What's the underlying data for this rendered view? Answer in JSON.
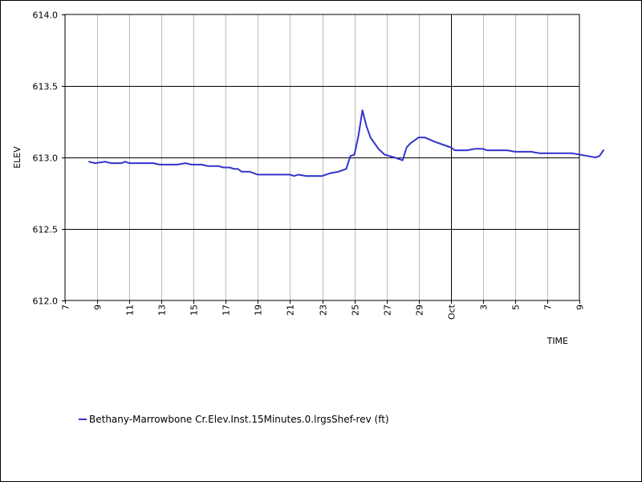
{
  "chart_data": {
    "type": "line",
    "xlabel": "TIME",
    "ylabel": "ELEV",
    "ylim": [
      612.0,
      614.0
    ],
    "yticks": [
      "612.0",
      "612.5",
      "613.0",
      "613.5",
      "614.0"
    ],
    "xlim": [
      "2023-09-07",
      "2023-10-09"
    ],
    "xticks": [
      {
        "date": "2023-09-07",
        "label": "7"
      },
      {
        "date": "2023-09-09",
        "label": "9"
      },
      {
        "date": "2023-09-11",
        "label": "11"
      },
      {
        "date": "2023-09-13",
        "label": "13"
      },
      {
        "date": "2023-09-15",
        "label": "15"
      },
      {
        "date": "2023-09-17",
        "label": "17"
      },
      {
        "date": "2023-09-19",
        "label": "19"
      },
      {
        "date": "2023-09-21",
        "label": "21"
      },
      {
        "date": "2023-09-23",
        "label": "23"
      },
      {
        "date": "2023-09-25",
        "label": "25"
      },
      {
        "date": "2023-09-27",
        "label": "27"
      },
      {
        "date": "2023-09-29",
        "label": "29"
      },
      {
        "date": "2023-10-01",
        "label": "Oct"
      },
      {
        "date": "2023-10-03",
        "label": "3"
      },
      {
        "date": "2023-10-05",
        "label": "5"
      },
      {
        "date": "2023-10-07",
        "label": "7"
      },
      {
        "date": "2023-10-09",
        "label": "9"
      }
    ],
    "grid": true,
    "legend_position": "bottom-left",
    "series": [
      {
        "name": "Bethany-Marrowbone Cr.Elev.Inst.15Minutes.0.lrgsShef-rev (ft)",
        "color": "#3333cc",
        "points": [
          [
            "2023-09-08 12:00",
            612.97
          ],
          [
            "2023-09-08 21:00",
            612.96
          ],
          [
            "2023-09-09 12:00",
            612.97
          ],
          [
            "2023-09-09 21:00",
            612.96
          ],
          [
            "2023-09-10 12:00",
            612.96
          ],
          [
            "2023-09-10 18:00",
            612.97
          ],
          [
            "2023-09-11 00:00",
            612.96
          ],
          [
            "2023-09-12 12:00",
            612.96
          ],
          [
            "2023-09-12 21:00",
            612.95
          ],
          [
            "2023-09-14 00:00",
            612.95
          ],
          [
            "2023-09-14 12:00",
            612.96
          ],
          [
            "2023-09-14 21:00",
            612.95
          ],
          [
            "2023-09-15 12:00",
            612.95
          ],
          [
            "2023-09-15 21:00",
            612.94
          ],
          [
            "2023-09-16 12:00",
            612.94
          ],
          [
            "2023-09-16 21:00",
            612.93
          ],
          [
            "2023-09-17 06:00",
            612.93
          ],
          [
            "2023-09-17 12:00",
            612.92
          ],
          [
            "2023-09-17 18:00",
            612.92
          ],
          [
            "2023-09-18 00:00",
            612.9
          ],
          [
            "2023-09-18 12:00",
            612.9
          ],
          [
            "2023-09-19 00:00",
            612.88
          ],
          [
            "2023-09-20 00:00",
            612.88
          ],
          [
            "2023-09-21 00:00",
            612.88
          ],
          [
            "2023-09-21 06:00",
            612.87
          ],
          [
            "2023-09-21 12:00",
            612.88
          ],
          [
            "2023-09-22 00:00",
            612.87
          ],
          [
            "2023-09-23 00:00",
            612.87
          ],
          [
            "2023-09-23 12:00",
            612.89
          ],
          [
            "2023-09-24 00:00",
            612.9
          ],
          [
            "2023-09-24 12:00",
            612.92
          ],
          [
            "2023-09-24 18:00",
            613.01
          ],
          [
            "2023-09-25 00:00",
            613.02
          ],
          [
            "2023-09-25 06:00",
            613.15
          ],
          [
            "2023-09-25 12:00",
            613.33
          ],
          [
            "2023-09-25 18:00",
            613.22
          ],
          [
            "2023-09-26 00:00",
            613.14
          ],
          [
            "2023-09-26 12:00",
            613.06
          ],
          [
            "2023-09-26 21:00",
            613.02
          ],
          [
            "2023-09-27 12:00",
            613.0
          ],
          [
            "2023-09-28 00:00",
            612.98
          ],
          [
            "2023-09-28 06:00",
            613.07
          ],
          [
            "2023-09-28 12:00",
            613.1
          ],
          [
            "2023-09-29 00:00",
            613.14
          ],
          [
            "2023-09-29 09:00",
            613.14
          ],
          [
            "2023-09-30 00:00",
            613.11
          ],
          [
            "2023-09-30 12:00",
            613.09
          ],
          [
            "2023-10-01 00:00",
            613.07
          ],
          [
            "2023-10-01 06:00",
            613.05
          ],
          [
            "2023-10-01 12:00",
            613.05
          ],
          [
            "2023-10-02 00:00",
            613.05
          ],
          [
            "2023-10-02 12:00",
            613.06
          ],
          [
            "2023-10-03 00:00",
            613.06
          ],
          [
            "2023-10-03 06:00",
            613.05
          ],
          [
            "2023-10-04 00:00",
            613.05
          ],
          [
            "2023-10-04 12:00",
            613.05
          ],
          [
            "2023-10-05 00:00",
            613.04
          ],
          [
            "2023-10-06 00:00",
            613.04
          ],
          [
            "2023-10-06 12:00",
            613.03
          ],
          [
            "2023-10-07 00:00",
            613.03
          ],
          [
            "2023-10-08 00:00",
            613.03
          ],
          [
            "2023-10-08 12:00",
            613.03
          ],
          [
            "2023-10-09 00:00",
            613.02
          ],
          [
            "2023-10-09 12:00",
            613.01
          ],
          [
            "2023-10-10 00:00",
            613.0
          ],
          [
            "2023-10-10 06:00",
            613.01
          ],
          [
            "2023-10-10 12:00",
            613.05
          ]
        ]
      }
    ]
  }
}
